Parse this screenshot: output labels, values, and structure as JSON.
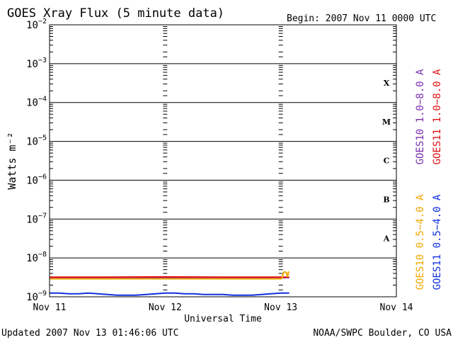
{
  "header": {
    "title": "GOES Xray Flux (5 minute data)",
    "begin": "Begin:  2007 Nov 11 0000 UTC"
  },
  "footer": {
    "updated": "Updated 2007 Nov 13 01:46:06 UTC",
    "credit": "NOAA/SWPC Boulder, CO USA"
  },
  "chart_data": {
    "type": "line",
    "title": "GOES Xray Flux (5 minute data)",
    "xlabel": "Universal Time",
    "ylabel": "Watts m⁻²",
    "y_scale": "log",
    "ylim": [
      1e-09,
      0.01
    ],
    "xlim": [
      0,
      72
    ],
    "x_unit": "hours since 2007 Nov 11 0000 UTC",
    "x_ticks": [
      {
        "value": 0,
        "label": "Nov 11"
      },
      {
        "value": 24,
        "label": "Nov 12"
      },
      {
        "value": 48,
        "label": "Nov 13"
      },
      {
        "value": 72,
        "label": "Nov 14"
      }
    ],
    "y_ticks": [
      {
        "value": 1e-09,
        "base": "10",
        "exp": "−9"
      },
      {
        "value": 1e-08,
        "base": "10",
        "exp": "−8"
      },
      {
        "value": 1e-07,
        "base": "10",
        "exp": "−7"
      },
      {
        "value": 1e-06,
        "base": "10",
        "exp": "−6"
      },
      {
        "value": 1e-05,
        "base": "10",
        "exp": "−5"
      },
      {
        "value": 0.0001,
        "base": "10",
        "exp": "−4"
      },
      {
        "value": 0.001,
        "base": "10",
        "exp": "−3"
      },
      {
        "value": 0.01,
        "base": "10",
        "exp": "−2"
      }
    ],
    "flare_classes": [
      {
        "label": "X",
        "value": 0.00032
      },
      {
        "label": "M",
        "value": 3.2e-05
      },
      {
        "label": "C",
        "value": 3.2e-06
      },
      {
        "label": "B",
        "value": 3.2e-07
      },
      {
        "label": "A",
        "value": 3.2e-08
      }
    ],
    "legend_right": [
      {
        "name": "GOES10 1.0−8.0 A",
        "color": "#7a2fb0"
      },
      {
        "name": "GOES11 1.0−8.0 A",
        "color": "#e01010"
      }
    ],
    "legend_left": [
      {
        "name": "GOES10 0.5−4.0 A",
        "color": "#f0a800"
      },
      {
        "name": "GOES11 0.5−4.0 A",
        "color": "#1030e0"
      }
    ],
    "series": [
      {
        "name": "GOES10 1.0−8.0 A",
        "color": "#7a2fb0",
        "x": [
          0,
          49.75
        ],
        "y": [
          3.1e-09,
          3.1e-09
        ]
      },
      {
        "name": "GOES11 1.0−8.0 A",
        "color": "#e01010",
        "x": [
          0,
          12,
          24,
          36,
          49.75
        ],
        "y": [
          3.2e-09,
          3.2e-09,
          3.25e-09,
          3.2e-09,
          3.2e-09
        ]
      },
      {
        "name": "GOES10 0.5−4.0 A",
        "color": "#f0a800",
        "x": [
          0,
          12,
          24,
          36,
          48,
          48.3,
          48.4,
          48.6,
          48.8,
          49.0,
          49.2,
          49.4,
          49.6,
          49.75
        ],
        "y": [
          2.9e-09,
          2.9e-09,
          2.9e-09,
          2.9e-09,
          2.9e-09,
          3e-09,
          3.6e-09,
          4.2e-09,
          4.4e-09,
          4.3e-09,
          4.1e-09,
          3.2e-09,
          4.3e-09,
          4.2e-09
        ]
      },
      {
        "name": "GOES11 0.5−4.0 A",
        "color": "#1030e0",
        "x": [
          0,
          2,
          4,
          6,
          8,
          10,
          12,
          14,
          16,
          18,
          20,
          22,
          24,
          26,
          28,
          30,
          32,
          34,
          36,
          38,
          40,
          42,
          44,
          46,
          48,
          49.75
        ],
        "y": [
          1.25e-09,
          1.25e-09,
          1.2e-09,
          1.2e-09,
          1.25e-09,
          1.2e-09,
          1.15e-09,
          1.1e-09,
          1.1e-09,
          1.1e-09,
          1.15e-09,
          1.2e-09,
          1.25e-09,
          1.25e-09,
          1.2e-09,
          1.2e-09,
          1.15e-09,
          1.15e-09,
          1.15e-09,
          1.1e-09,
          1.1e-09,
          1.1e-09,
          1.15e-09,
          1.2e-09,
          1.25e-09,
          1.25e-09
        ]
      }
    ]
  }
}
